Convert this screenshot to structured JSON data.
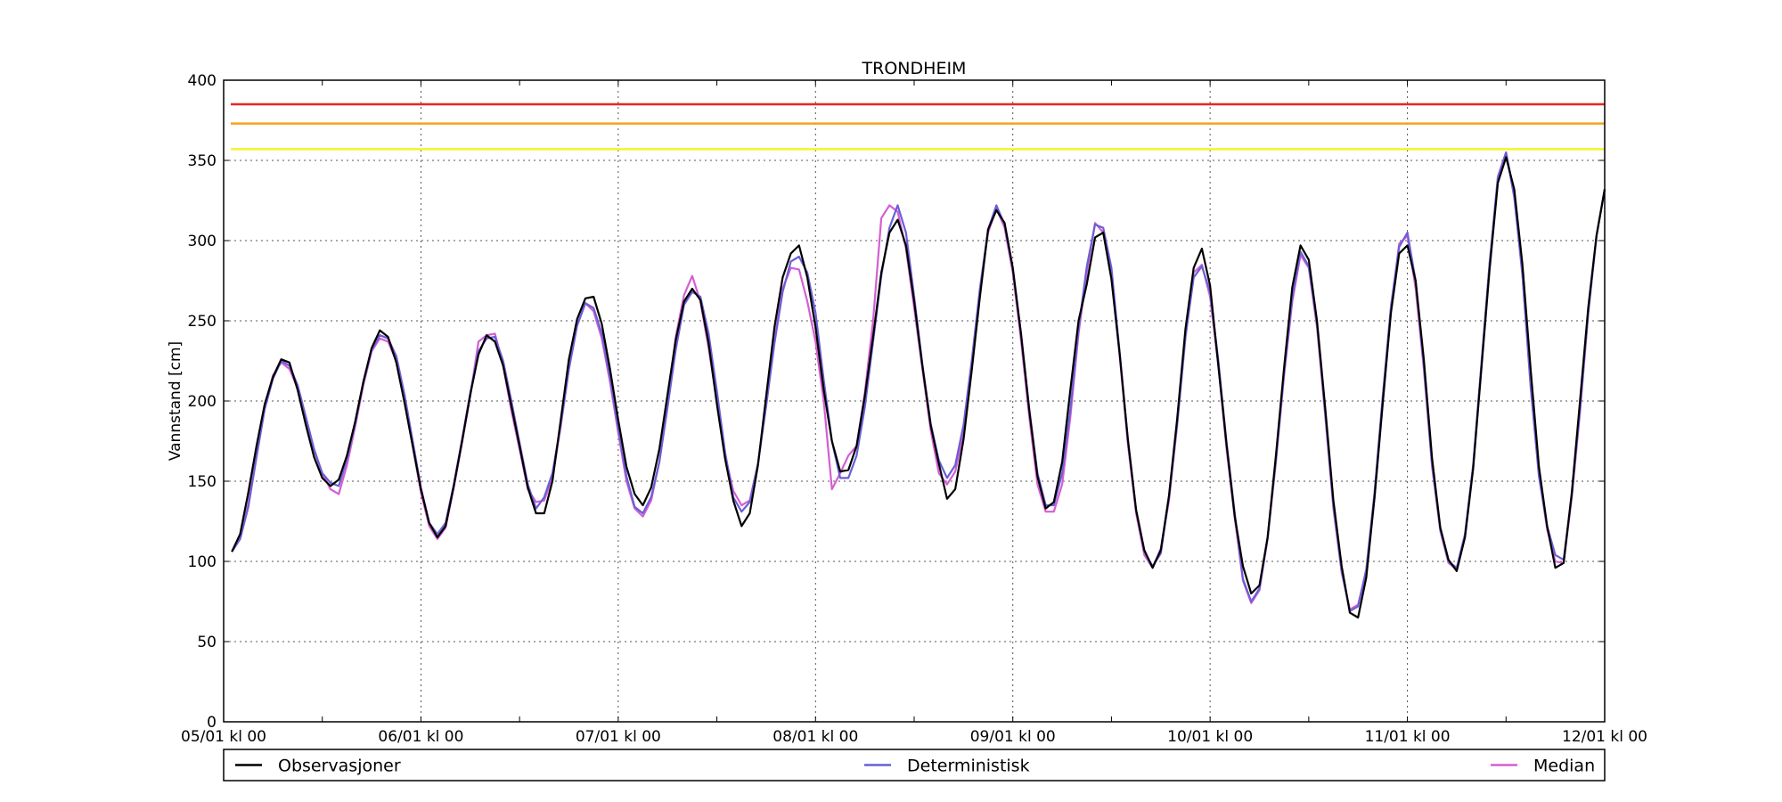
{
  "chart_data": {
    "type": "line",
    "title": "TRONDHEIM",
    "ylabel": "Vannstand [cm]",
    "xlabel": "",
    "ylim": [
      0,
      400
    ],
    "yticks": [
      0,
      50,
      100,
      150,
      200,
      250,
      300,
      350,
      400
    ],
    "xlim_hours": [
      0,
      168
    ],
    "x_unit": "hours from 05/01 kl 00, hourly-ish samples",
    "xtick_labels": [
      {
        "hour": 0,
        "label": "05/01 kl 00"
      },
      {
        "hour": 24,
        "label": "06/01 kl 00"
      },
      {
        "hour": 48,
        "label": "07/01 kl 00"
      },
      {
        "hour": 72,
        "label": "08/01 kl 00"
      },
      {
        "hour": 96,
        "label": "09/01 kl 00"
      },
      {
        "hour": 120,
        "label": "10/01 kl 00"
      },
      {
        "hour": 144,
        "label": "11/01 kl 00"
      },
      {
        "hour": 168,
        "label": "12/01 kl 00"
      }
    ],
    "minor_xticks": [
      12,
      36,
      60,
      84,
      108,
      132,
      156
    ],
    "grid": true,
    "legend_position": "bottom",
    "thresholds": [
      {
        "value": 385,
        "color": "#e8261c"
      },
      {
        "value": 373,
        "color": "#f7a21b"
      },
      {
        "value": 357,
        "color": "#f5f52a"
      }
    ],
    "series": [
      {
        "name": "Observasjoner",
        "color": "#000000",
        "x": [
          1,
          2,
          3,
          4,
          5,
          6,
          7,
          8,
          9,
          10,
          11,
          12,
          13,
          14,
          15,
          16,
          17,
          18,
          19,
          20,
          21,
          22,
          23,
          24,
          25,
          26,
          27,
          28,
          29,
          30,
          31,
          32,
          33,
          34,
          35,
          36,
          37,
          38,
          39,
          40,
          41,
          42,
          43,
          44,
          45,
          46,
          47,
          48,
          49,
          50,
          51,
          52,
          53,
          54,
          55,
          56,
          57,
          58,
          59,
          60,
          61,
          62,
          63,
          64,
          65,
          66,
          67,
          68,
          69,
          70,
          71,
          72,
          73,
          74,
          75,
          76,
          77,
          78,
          79,
          80,
          81,
          82,
          83,
          84,
          85,
          86,
          87,
          88,
          89,
          90,
          91,
          92,
          93,
          94,
          95,
          96,
          97,
          98,
          99,
          100,
          101,
          102,
          103,
          104,
          105,
          106,
          107,
          108,
          109,
          110,
          111,
          112,
          113,
          114,
          115,
          116,
          117,
          118,
          119,
          120,
          121,
          122,
          123,
          124,
          125,
          126,
          127,
          128,
          129,
          130,
          131,
          132,
          133,
          134,
          135,
          136,
          137,
          138,
          139,
          140,
          141,
          142,
          143,
          144,
          145,
          146,
          147,
          148,
          149,
          150,
          151,
          152,
          153,
          154,
          155,
          156,
          157,
          158,
          159,
          160,
          161,
          162,
          163,
          164,
          165,
          166,
          167,
          168
        ],
        "values": [
          106,
          117,
          143,
          172,
          198,
          215,
          226,
          224,
          207,
          185,
          165,
          152,
          147,
          151,
          166,
          187,
          212,
          233,
          244,
          240,
          224,
          199,
          172,
          145,
          124,
          115,
          122,
          147,
          175,
          204,
          229,
          241,
          237,
          222,
          197,
          172,
          146,
          130,
          130,
          150,
          188,
          226,
          251,
          264,
          265,
          248,
          220,
          188,
          159,
          142,
          135,
          146,
          170,
          204,
          238,
          262,
          270,
          263,
          236,
          198,
          164,
          138,
          122,
          130,
          160,
          203,
          246,
          277,
          292,
          297,
          277,
          246,
          207,
          175,
          156,
          157,
          172,
          203,
          240,
          280,
          305,
          313,
          297,
          262,
          222,
          185,
          161,
          139,
          145,
          176,
          219,
          265,
          307,
          319,
          311,
          283,
          242,
          194,
          153,
          133,
          137,
          162,
          207,
          250,
          273,
          302,
          305,
          276,
          229,
          176,
          132,
          107,
          96,
          107,
          141,
          189,
          245,
          283,
          295,
          272,
          222,
          173,
          128,
          97,
          80,
          85,
          115,
          166,
          221,
          271,
          297,
          288,
          250,
          196,
          138,
          97,
          68,
          65,
          90,
          140,
          199,
          255,
          292,
          297,
          275,
          226,
          164,
          121,
          101,
          94,
          115,
          158,
          220,
          282,
          336,
          352,
          332,
          285,
          219,
          159,
          122,
          96,
          99,
          143,
          200,
          258,
          303,
          332
        ]
      },
      {
        "name": "Deterministisk",
        "color": "#6a5fd6",
        "x": [
          1,
          2,
          3,
          4,
          5,
          6,
          7,
          8,
          9,
          10,
          11,
          12,
          13,
          14,
          15,
          16,
          17,
          18,
          19,
          20,
          21,
          22,
          23,
          24,
          25,
          26,
          27,
          28,
          29,
          30,
          31,
          32,
          33,
          34,
          35,
          36,
          37,
          38,
          39,
          40,
          41,
          42,
          43,
          44,
          45,
          46,
          47,
          48,
          49,
          50,
          51,
          52,
          53,
          54,
          55,
          56,
          57,
          58,
          59,
          60,
          61,
          62,
          63,
          64,
          65,
          66,
          67,
          68,
          69,
          70,
          71,
          72,
          73,
          74,
          75,
          76,
          77,
          78,
          79,
          80,
          81,
          82,
          83,
          84,
          85,
          86,
          87,
          88,
          89,
          90,
          91,
          92,
          93,
          94,
          95,
          96,
          97,
          98,
          99,
          100,
          101,
          102,
          103,
          104,
          105,
          106,
          107,
          108,
          109,
          110,
          111,
          112,
          113,
          114,
          115,
          116,
          117,
          118,
          119,
          120,
          121,
          122,
          123,
          124,
          125,
          126,
          127,
          128,
          129,
          130,
          131,
          132,
          133,
          134,
          135,
          136,
          137,
          138,
          139,
          140,
          141,
          142,
          143,
          144,
          145,
          146,
          147,
          148,
          149,
          150,
          151,
          152,
          153,
          154,
          155,
          156,
          157,
          158,
          159,
          160,
          161,
          162,
          163,
          164,
          165,
          166,
          167,
          168
        ],
        "values": [
          106,
          114,
          134,
          165,
          195,
          214,
          225,
          222,
          210,
          190,
          170,
          155,
          149,
          147,
          164,
          186,
          211,
          232,
          241,
          239,
          228,
          204,
          175,
          146,
          124,
          117,
          124,
          148,
          176,
          205,
          231,
          239,
          240,
          225,
          200,
          174,
          148,
          133,
          140,
          155,
          185,
          220,
          247,
          261,
          258,
          242,
          215,
          183,
          153,
          134,
          130,
          140,
          162,
          196,
          232,
          260,
          268,
          265,
          242,
          206,
          168,
          140,
          131,
          137,
          161,
          197,
          236,
          268,
          287,
          290,
          280,
          255,
          213,
          175,
          152,
          152,
          166,
          196,
          237,
          278,
          308,
          322,
          305,
          265,
          223,
          186,
          163,
          152,
          160,
          185,
          225,
          270,
          307,
          322,
          310,
          282,
          242,
          195,
          155,
          135,
          135,
          155,
          195,
          245,
          284,
          310,
          308,
          283,
          230,
          175,
          132,
          106,
          97,
          105,
          140,
          186,
          240,
          277,
          284,
          268,
          225,
          174,
          130,
          89,
          75,
          83,
          115,
          163,
          218,
          265,
          293,
          284,
          248,
          193,
          135,
          94,
          69,
          72,
          95,
          143,
          203,
          259,
          296,
          305,
          275,
          222,
          160,
          120,
          100,
          96,
          117,
          160,
          223,
          286,
          339,
          355,
          327,
          279,
          209,
          153,
          122,
          104,
          101,
          141,
          195,
          255,
          303,
          332
        ]
      },
      {
        "name": "Median",
        "color": "#d45fd3",
        "x": [
          1,
          2,
          3,
          4,
          5,
          6,
          7,
          8,
          9,
          10,
          11,
          12,
          13,
          14,
          15,
          16,
          17,
          18,
          19,
          20,
          21,
          22,
          23,
          24,
          25,
          26,
          27,
          28,
          29,
          30,
          31,
          32,
          33,
          34,
          35,
          36,
          37,
          38,
          39,
          40,
          41,
          42,
          43,
          44,
          45,
          46,
          47,
          48,
          49,
          50,
          51,
          52,
          53,
          54,
          55,
          56,
          57,
          58,
          59,
          60,
          61,
          62,
          63,
          64,
          65,
          66,
          67,
          68,
          69,
          70,
          71,
          72,
          73,
          74,
          75,
          76,
          77,
          78,
          79,
          80,
          81,
          82,
          83,
          84,
          85,
          86,
          87,
          88,
          89,
          90,
          91,
          92,
          93,
          94,
          95,
          96,
          97,
          98,
          99,
          100,
          101,
          102,
          103,
          104,
          105,
          106,
          107,
          108,
          109,
          110,
          111,
          112,
          113,
          114,
          115,
          116,
          117,
          118,
          119,
          120,
          121,
          122,
          123,
          124,
          125,
          126,
          127,
          128,
          129,
          130,
          131,
          132,
          133,
          134,
          135,
          136,
          137,
          138,
          139,
          140,
          141,
          142,
          143,
          144,
          145,
          146,
          147,
          148,
          149,
          150,
          151,
          152,
          153,
          154,
          155,
          156,
          157,
          158,
          159,
          160,
          161,
          162,
          163,
          164,
          165,
          166,
          167,
          168
        ],
        "values": [
          106,
          114,
          136,
          168,
          197,
          216,
          224,
          220,
          208,
          188,
          169,
          155,
          145,
          142,
          160,
          184,
          210,
          231,
          239,
          237,
          225,
          200,
          172,
          143,
          122,
          114,
          121,
          146,
          174,
          203,
          237,
          241,
          242,
          222,
          194,
          170,
          145,
          137,
          138,
          152,
          184,
          220,
          247,
          261,
          256,
          239,
          212,
          180,
          150,
          133,
          128,
          138,
          162,
          198,
          240,
          266,
          278,
          262,
          233,
          200,
          166,
          144,
          135,
          138,
          161,
          198,
          238,
          270,
          283,
          282,
          262,
          237,
          200,
          145,
          155,
          166,
          172,
          205,
          250,
          314,
          322,
          318,
          295,
          258,
          220,
          182,
          155,
          148,
          156,
          180,
          222,
          270,
          305,
          320,
          308,
          280,
          238,
          190,
          148,
          131,
          131,
          148,
          190,
          242,
          280,
          311,
          305,
          280,
          228,
          173,
          130,
          104,
          96,
          108,
          138,
          185,
          240,
          280,
          285,
          265,
          222,
          170,
          127,
          88,
          74,
          82,
          114,
          162,
          216,
          262,
          291,
          283,
          246,
          191,
          133,
          93,
          70,
          73,
          94,
          140,
          198,
          257,
          298,
          303,
          270,
          220,
          159,
          119,
          99,
          95,
          116,
          160,
          222,
          285,
          340,
          355,
          329,
          278,
          208,
          154,
          120,
          100,
          99,
          140,
          193,
          254,
          303,
          332
        ]
      }
    ]
  }
}
